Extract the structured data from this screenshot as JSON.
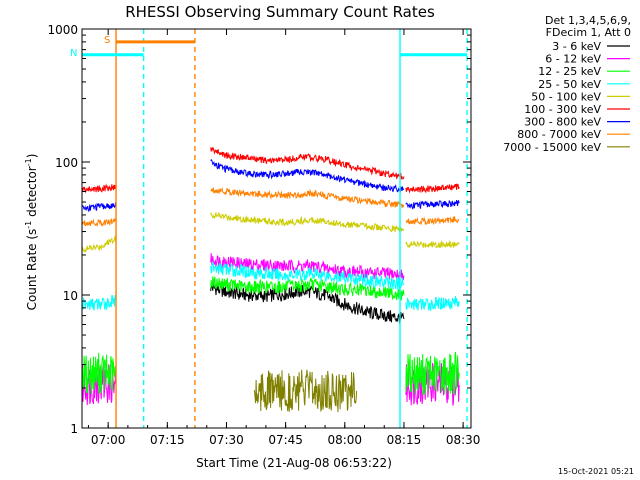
{
  "chart_data": {
    "type": "line",
    "title": "RHESSI Observing Summary Count Rates",
    "xlabel": "Start Time (21-Aug-08 06:53:22)",
    "ylabel": "Count Rate (s",
    "ylabel_sup1": "-1",
    "ylabel_mid": " detector",
    "ylabel_sup2": "-1",
    "ylabel_end": ")",
    "yscale": "log",
    "ylim": [
      1,
      1000
    ],
    "xlim": [
      "06:53:22",
      "08:32:00"
    ],
    "x_ticks": [
      "07:00",
      "07:15",
      "07:30",
      "07:45",
      "08:00",
      "08:15",
      "08:30"
    ],
    "y_ticks": [
      "1",
      "10",
      "100",
      "1000"
    ],
    "legend_header": [
      "Det 1,3,4,5,6,9,",
      "FDecim 1, Att 0"
    ],
    "series": [
      {
        "name": "3 - 6 keV",
        "color": "#000000",
        "segments": [
          {
            "x": [
              "07:26:00",
              "07:30:00",
              "07:35:00",
              "07:40:00",
              "07:45:00",
              "07:50:00",
              "07:55:00",
              "08:00:00",
              "08:05:00",
              "08:10:00",
              "08:15:00"
            ],
            "y": [
              11.5,
              10.5,
              10,
              9.8,
              10.2,
              10.8,
              10,
              8.5,
              7.5,
              7,
              6.6
            ]
          }
        ]
      },
      {
        "name": "6 - 12 keV",
        "color": "#ff00ff",
        "segments": [
          {
            "x": [
              "06:53:22",
              "06:58:00",
              "07:02:00"
            ],
            "y": [
              2.1,
              2.2,
              2.1
            ]
          },
          {
            "x": [
              "07:26:00",
              "07:35:00",
              "07:45:00",
              "07:52:00",
              "08:00:00",
              "08:10:00",
              "08:15:00"
            ],
            "y": [
              18.5,
              17,
              16.5,
              16.5,
              15,
              14.5,
              14
            ]
          },
          {
            "x": [
              "08:15:30",
              "08:22:00",
              "08:29:00"
            ],
            "y": [
              2.1,
              2.2,
              2.1
            ]
          }
        ]
      },
      {
        "name": "12 - 25 keV",
        "color": "#00ff00",
        "segments": [
          {
            "x": [
              "06:53:22",
              "06:58:00",
              "07:02:00"
            ],
            "y": [
              2.5,
              2.6,
              2.5
            ]
          },
          {
            "x": [
              "07:26:00",
              "07:35:00",
              "07:45:00",
              "07:52:00",
              "08:00:00",
              "08:10:00",
              "08:15:00"
            ],
            "y": [
              12.5,
              11.5,
              11.5,
              12,
              11,
              10.5,
              10
            ]
          },
          {
            "x": [
              "08:15:30",
              "08:22:00",
              "08:29:00"
            ],
            "y": [
              2.6,
              2.5,
              2.6
            ]
          }
        ]
      },
      {
        "name": "25 - 50 keV",
        "color": "#00ffff",
        "segments": [
          {
            "x": [
              "06:53:22",
              "06:58:00",
              "07:02:00"
            ],
            "y": [
              8.5,
              8.5,
              9
            ]
          },
          {
            "x": [
              "07:26:00",
              "07:35:00",
              "07:45:00",
              "07:52:00",
              "08:00:00",
              "08:10:00",
              "08:15:00"
            ],
            "y": [
              16,
              15,
              14,
              14.5,
              13.5,
              12.5,
              12
            ]
          },
          {
            "x": [
              "08:15:30",
              "08:22:00",
              "08:29:00"
            ],
            "y": [
              8.5,
              8.5,
              9
            ]
          }
        ]
      },
      {
        "name": "50 - 100 keV",
        "color": "#cccc00",
        "segments": [
          {
            "x": [
              "06:53:22",
              "06:58:00",
              "07:02:00"
            ],
            "y": [
              22,
              23,
              27
            ]
          },
          {
            "x": [
              "07:26:00",
              "07:35:00",
              "07:45:00",
              "07:52:00",
              "08:00:00",
              "08:10:00",
              "08:15:00"
            ],
            "y": [
              40,
              37,
              35,
              37,
              34,
              32,
              31
            ]
          },
          {
            "x": [
              "08:15:30",
              "08:22:00",
              "08:29:00"
            ],
            "y": [
              24,
              24,
              24
            ]
          }
        ]
      },
      {
        "name": "100 - 300 keV",
        "color": "#ff0000",
        "segments": [
          {
            "x": [
              "06:53:22",
              "06:58:00",
              "07:02:00"
            ],
            "y": [
              62,
              63,
              65
            ]
          },
          {
            "x": [
              "07:26:00",
              "07:30:00",
              "07:35:00",
              "07:40:00",
              "07:45:00",
              "07:50:00",
              "07:55:00",
              "08:00:00",
              "08:05:00",
              "08:10:00",
              "08:15:00"
            ],
            "y": [
              125,
              112,
              108,
              102,
              104,
              110,
              105,
              95,
              88,
              82,
              78
            ]
          },
          {
            "x": [
              "08:15:30",
              "08:22:00",
              "08:29:00"
            ],
            "y": [
              62,
              63,
              65
            ]
          }
        ]
      },
      {
        "name": "300 - 800 keV",
        "color": "#0000ff",
        "segments": [
          {
            "x": [
              "06:53:22",
              "06:58:00",
              "07:02:00"
            ],
            "y": [
              45,
              46,
              47
            ]
          },
          {
            "x": [
              "07:26:00",
              "07:30:00",
              "07:35:00",
              "07:40:00",
              "07:45:00",
              "07:50:00",
              "07:55:00",
              "08:00:00",
              "08:05:00",
              "08:10:00",
              "08:15:00"
            ],
            "y": [
              100,
              88,
              82,
              80,
              82,
              85,
              80,
              74,
              68,
              64,
              62
            ]
          },
          {
            "x": [
              "08:15:30",
              "08:22:00",
              "08:29:00"
            ],
            "y": [
              47,
              48,
              49
            ]
          }
        ]
      },
      {
        "name": "800 - 7000 keV",
        "color": "#ff8000",
        "segments": [
          {
            "x": [
              "06:53:22",
              "06:58:00",
              "07:02:00"
            ],
            "y": [
              35,
              35,
              36
            ]
          },
          {
            "x": [
              "07:26:00",
              "07:35:00",
              "07:45:00",
              "07:52:00",
              "08:00:00",
              "08:10:00",
              "08:15:00"
            ],
            "y": [
              62,
              58,
              56,
              58,
              53,
              49,
              47
            ]
          },
          {
            "x": [
              "08:15:30",
              "08:22:00",
              "08:29:00"
            ],
            "y": [
              36,
              36,
              37
            ]
          }
        ]
      },
      {
        "name": "7000 - 15000 keV",
        "color": "#808000",
        "segments": [
          {
            "x": [
              "07:37:00",
              "07:40:00",
              "07:45:00",
              "07:50:00",
              "07:55:00",
              "08:00:00",
              "08:03:00"
            ],
            "y": [
              1.9,
              1.9,
              1.9,
              1.9,
              1.9,
              1.9,
              1.9
            ]
          }
        ]
      }
    ],
    "flags": [
      {
        "label": "S",
        "color": "#ff8000",
        "value": 800,
        "start": "07:02:00",
        "end": "07:22:00"
      },
      {
        "label": "N",
        "color": "#00ffff",
        "value": 640,
        "start": "06:53:22",
        "end": "07:09:00"
      },
      {
        "label": "",
        "color": "#00ffff",
        "value": 640,
        "start": "08:14:00",
        "end": "08:31:00"
      }
    ],
    "markers": [
      {
        "time": "07:02:00",
        "color": "#ff8000",
        "style": "solid"
      },
      {
        "time": "07:22:00",
        "color": "#ff8000",
        "style": "dashed"
      },
      {
        "time": "07:09:00",
        "color": "#00ffff",
        "style": "dashed"
      },
      {
        "time": "08:14:00",
        "color": "#00ffff",
        "style": "solid"
      },
      {
        "time": "08:31:00",
        "color": "#00ffff",
        "style": "dashed"
      }
    ],
    "footer": "15-Oct-2021 05:21"
  }
}
